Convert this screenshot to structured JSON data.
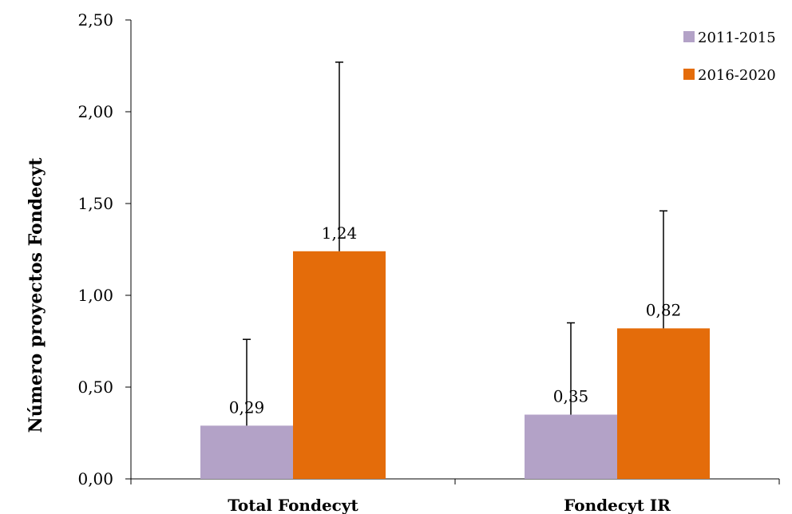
{
  "chart_data": {
    "type": "bar",
    "ylabel": "Número proyectos Fondecyt",
    "xlabel": "",
    "categories": [
      "Total Fondecyt",
      "Fondecyt IR"
    ],
    "ylim": [
      0,
      2.5
    ],
    "yticks": [
      "0,00",
      "0,50",
      "1,00",
      "1,50",
      "2,00",
      "2,50"
    ],
    "ytick_values": [
      0,
      0.5,
      1.0,
      1.5,
      2.0,
      2.5
    ],
    "grid": false,
    "legend_position": "top-right",
    "series": [
      {
        "name": "2011-2015",
        "color": "#b3a2c7",
        "values": [
          0.29,
          0.35
        ],
        "labels": [
          "0,29",
          "0,35"
        ],
        "error_upper": [
          0.76,
          0.85
        ]
      },
      {
        "name": "2016-2020",
        "color": "#e46c0a",
        "values": [
          1.24,
          0.82
        ],
        "labels": [
          "1,24",
          "0,82"
        ],
        "error_upper": [
          2.27,
          1.46
        ]
      }
    ]
  }
}
